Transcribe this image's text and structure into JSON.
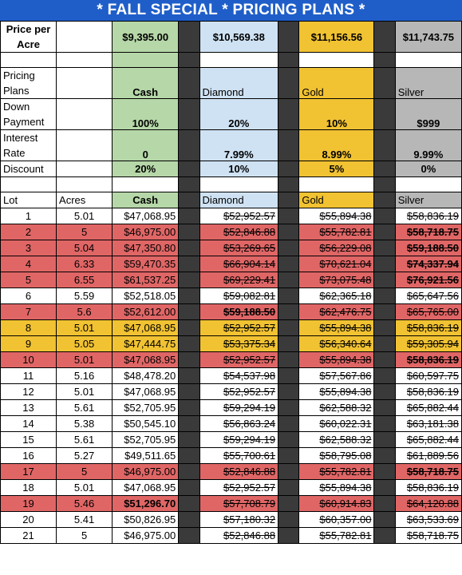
{
  "title": "* FALL SPECIAL * PRICING PLANS *",
  "price_per_acre": {
    "label": "Price per Acre",
    "cash": "$9,395.00",
    "diamond": "$10,569.38",
    "gold": "$11,156.56",
    "silver": "$11,743.75"
  },
  "plans": {
    "label": "Pricing Plans",
    "cash": "Cash",
    "diamond": "Diamond",
    "gold": "Gold",
    "silver": "Silver"
  },
  "down_payment": {
    "label": "Down Payment",
    "cash": "100%",
    "diamond": "20%",
    "gold": "10%",
    "silver": "$999"
  },
  "interest_rate": {
    "label": "Interest Rate",
    "cash": "0",
    "diamond": "7.99%",
    "gold": "8.99%",
    "silver": "9.99%"
  },
  "discount": {
    "label": "Discount",
    "cash": "20%",
    "diamond": "10%",
    "gold": "5%",
    "silver": "0%"
  },
  "columns": [
    "Lot",
    "Acres",
    "Cash",
    "Diamond",
    "Gold",
    "Silver"
  ],
  "lots": [
    {
      "lot": "1",
      "acres": "5.01",
      "cash": "$47,068.95",
      "diamond": "$52,952.57",
      "gold": "$55,894.38",
      "silver": "$58,836.19",
      "status": "available"
    },
    {
      "lot": "2",
      "acres": "5",
      "cash": "$46,975.00",
      "diamond": "$52,846.88",
      "gold": "$55,782.81",
      "silver": "$58,718.75",
      "status": "sold"
    },
    {
      "lot": "3",
      "acres": "5.04",
      "cash": "$47,350.80",
      "diamond": "$53,269.65",
      "gold": "$56,229.08",
      "silver": "$59,188.50",
      "status": "sold"
    },
    {
      "lot": "4",
      "acres": "6.33",
      "cash": "$59,470.35",
      "diamond": "$66,904.14",
      "gold": "$70,621.04",
      "silver": "$74,337.94",
      "status": "sold"
    },
    {
      "lot": "5",
      "acres": "6.55",
      "cash": "$61,537.25",
      "diamond": "$69,229.41",
      "gold": "$73,075.48",
      "silver": "$76,921.56",
      "status": "sold"
    },
    {
      "lot": "6",
      "acres": "5.59",
      "cash": "$52,518.05",
      "diamond": "$59,082.81",
      "gold": "$62,365.18",
      "silver": "$65,647.56",
      "status": "available"
    },
    {
      "lot": "7",
      "acres": "5.6",
      "cash": "$52,612.00",
      "diamond": "$59,188.50",
      "gold": "$62,476.75",
      "silver": "$65,765.00",
      "status": "sold"
    },
    {
      "lot": "8",
      "acres": "5.01",
      "cash": "$47,068.95",
      "diamond": "$52,952.57",
      "gold": "$55,894.38",
      "silver": "$58,836.19",
      "status": "pending"
    },
    {
      "lot": "9",
      "acres": "5.05",
      "cash": "$47,444.75",
      "diamond": "$53,375.34",
      "gold": "$56,340.64",
      "silver": "$59,305.94",
      "status": "pending"
    },
    {
      "lot": "10",
      "acres": "5.01",
      "cash": "$47,068.95",
      "diamond": "$52,952.57",
      "gold": "$55,894.38",
      "silver": "$58,836.19",
      "status": "sold"
    },
    {
      "lot": "11",
      "acres": "5.16",
      "cash": "$48,478.20",
      "diamond": "$54,537.98",
      "gold": "$57,567.86",
      "silver": "$60,597.75",
      "status": "available"
    },
    {
      "lot": "12",
      "acres": "5.01",
      "cash": "$47,068.95",
      "diamond": "$52,952.57",
      "gold": "$55,894.38",
      "silver": "$58,836.19",
      "status": "available"
    },
    {
      "lot": "13",
      "acres": "5.61",
      "cash": "$52,705.95",
      "diamond": "$59,294.19",
      "gold": "$62,588.32",
      "silver": "$65,882.44",
      "status": "available"
    },
    {
      "lot": "14",
      "acres": "5.38",
      "cash": "$50,545.10",
      "diamond": "$56,863.24",
      "gold": "$60,022.31",
      "silver": "$63,181.38",
      "status": "available"
    },
    {
      "lot": "15",
      "acres": "5.61",
      "cash": "$52,705.95",
      "diamond": "$59,294.19",
      "gold": "$62,588.32",
      "silver": "$65,882.44",
      "status": "available"
    },
    {
      "lot": "16",
      "acres": "5.27",
      "cash": "$49,511.65",
      "diamond": "$55,700.61",
      "gold": "$58,795.08",
      "silver": "$61,889.56",
      "status": "available"
    },
    {
      "lot": "17",
      "acres": "5",
      "cash": "$46,975.00",
      "diamond": "$52,846.88",
      "gold": "$55,782.81",
      "silver": "$58,718.75",
      "status": "sold"
    },
    {
      "lot": "18",
      "acres": "5.01",
      "cash": "$47,068.95",
      "diamond": "$52,952.57",
      "gold": "$55,894.38",
      "silver": "$58,836.19",
      "status": "available"
    },
    {
      "lot": "19",
      "acres": "5.46",
      "cash": "$51,296.70",
      "diamond": "$57,708.79",
      "gold": "$60,914.83",
      "silver": "$64,120.88",
      "status": "sold"
    },
    {
      "lot": "20",
      "acres": "5.41",
      "cash": "$50,826.95",
      "diamond": "$57,180.32",
      "gold": "$60,357.00",
      "silver": "$63,533.69",
      "status": "available"
    },
    {
      "lot": "21",
      "acres": "5",
      "cash": "$46,975.00",
      "diamond": "$52,846.88",
      "gold": "$55,782.81",
      "silver": "$58,718.75",
      "status": "available"
    }
  ],
  "colors": {
    "title_bg": "#1f5ec9",
    "cash": "#b6d7a8",
    "diamond": "#cfe2f3",
    "gold": "#f1c232",
    "silver": "#b7b7b7",
    "sold": "#e06666",
    "pending": "#f1c232",
    "separator": "#3a3a3a"
  }
}
